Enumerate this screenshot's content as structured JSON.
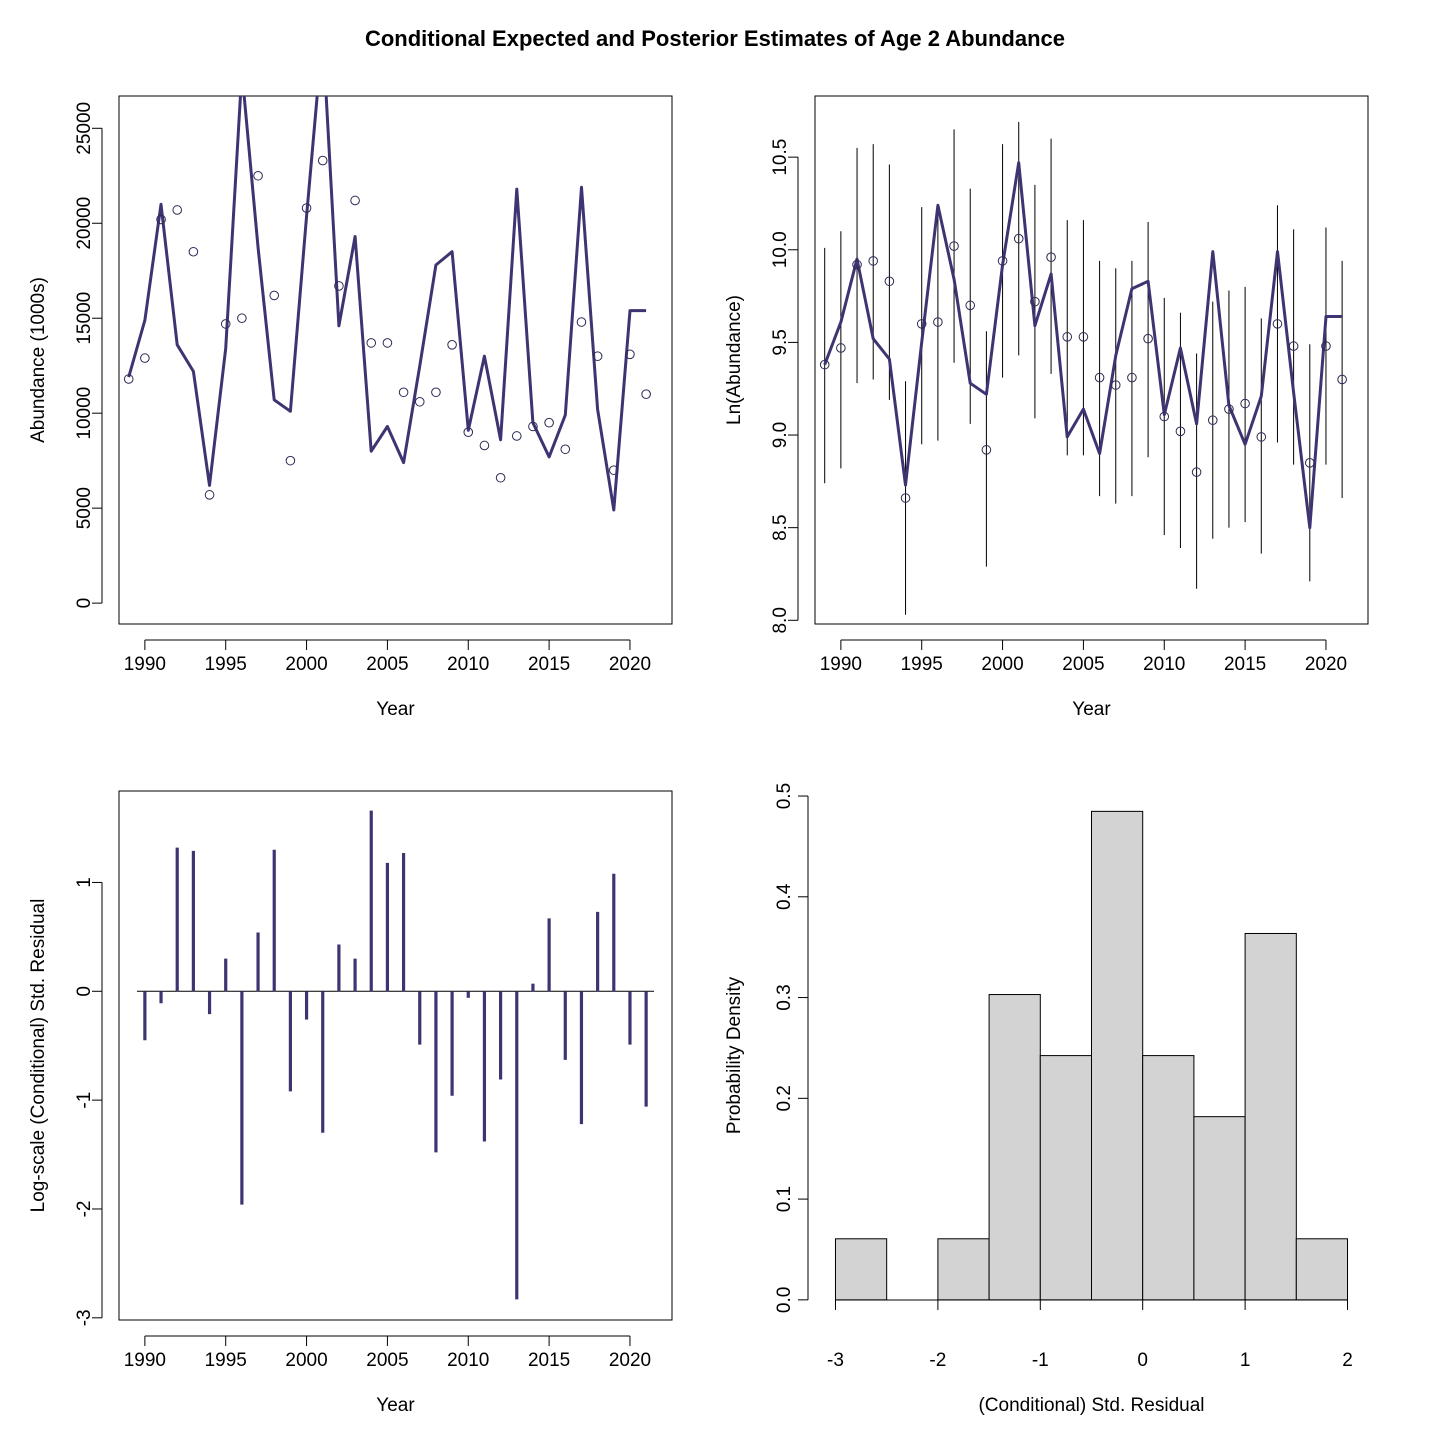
{
  "title": "Conditional Expected and Posterior Estimates of Age 2 Abundance",
  "colors": {
    "line": "#3f3472",
    "bar_fill": "#d3d3d3"
  },
  "chart_data": [
    {
      "type": "line",
      "panel": "top-left",
      "xlabel": "Year",
      "ylabel": "Abundance (1000s)",
      "xlim": [
        1988.4,
        2022.6
      ],
      "ylim": [
        -1100,
        26700
      ],
      "xticks": [
        1990,
        1995,
        2000,
        2005,
        2010,
        2015,
        2020
      ],
      "yticks": [
        0,
        5000,
        10000,
        15000,
        20000,
        25000
      ],
      "x": [
        1989,
        1990,
        1991,
        1992,
        1993,
        1994,
        1995,
        1996,
        1997,
        1998,
        1999,
        2000,
        2001,
        2002,
        2003,
        2004,
        2005,
        2006,
        2007,
        2008,
        2009,
        2010,
        2011,
        2012,
        2013,
        2014,
        2015,
        2016,
        2017,
        2018,
        2019,
        2020,
        2021
      ],
      "series": [
        {
          "style": "line",
          "values": [
            11900,
            14900,
            21000,
            13600,
            12200,
            6200,
            13400,
            28000,
            18700,
            10700,
            10100,
            20400,
            30000,
            14600,
            19300,
            8000,
            9300,
            7400,
            12500,
            17800,
            18500,
            9100,
            13000,
            8600,
            21800,
            9500,
            7700,
            9900,
            21900,
            10200,
            4900,
            15400,
            15400
          ]
        },
        {
          "style": "points",
          "values": [
            11800,
            12900,
            20200,
            20700,
            18500,
            5700,
            14700,
            15000,
            22500,
            16200,
            7500,
            20800,
            23300,
            16700,
            21200,
            13700,
            13700,
            11100,
            10600,
            11100,
            13600,
            9000,
            8300,
            6600,
            8800,
            9300,
            9500,
            8100,
            14800,
            13000,
            7000,
            13100,
            11000
          ]
        }
      ]
    },
    {
      "type": "line",
      "panel": "top-right",
      "xlabel": "Year",
      "ylabel": "Ln(Abundance)",
      "xlim": [
        1988.4,
        2022.6
      ],
      "ylim": [
        7.98,
        10.83
      ],
      "xticks": [
        1990,
        1995,
        2000,
        2005,
        2010,
        2015,
        2020
      ],
      "yticks": [
        8.0,
        8.5,
        9.0,
        9.5,
        10.0,
        10.5
      ],
      "ytick_labels": [
        "8.0",
        "8.5",
        "9.0",
        "9.5",
        "10.0",
        "10.5"
      ],
      "x": [
        1989,
        1990,
        1991,
        1992,
        1993,
        1994,
        1995,
        1996,
        1997,
        1998,
        1999,
        2000,
        2001,
        2002,
        2003,
        2004,
        2005,
        2006,
        2007,
        2008,
        2009,
        2010,
        2011,
        2012,
        2013,
        2014,
        2015,
        2016,
        2017,
        2018,
        2019,
        2020,
        2021
      ],
      "series": [
        {
          "style": "line",
          "values": [
            9.38,
            9.61,
            9.95,
            9.52,
            9.41,
            8.73,
            9.5,
            10.24,
            9.84,
            9.28,
            9.22,
            9.92,
            10.47,
            9.59,
            9.87,
            8.99,
            9.14,
            8.9,
            9.43,
            9.79,
            9.83,
            9.11,
            9.47,
            9.06,
            9.99,
            9.16,
            8.95,
            9.21,
            9.99,
            9.23,
            8.5,
            9.64,
            9.64
          ]
        },
        {
          "style": "points",
          "values": [
            9.38,
            9.47,
            9.92,
            9.94,
            9.83,
            8.66,
            9.6,
            9.61,
            10.02,
            9.7,
            8.92,
            9.94,
            10.06,
            9.72,
            9.96,
            9.53,
            9.53,
            9.31,
            9.27,
            9.31,
            9.52,
            9.1,
            9.02,
            8.8,
            9.08,
            9.14,
            9.17,
            8.99,
            9.6,
            9.48,
            8.85,
            9.48,
            9.3
          ]
        },
        {
          "style": "interval",
          "lower": [
            8.74,
            8.82,
            9.28,
            9.3,
            9.19,
            8.03,
            8.95,
            8.97,
            9.39,
            9.06,
            8.29,
            9.31,
            9.43,
            9.09,
            9.33,
            8.89,
            8.89,
            8.67,
            8.63,
            8.67,
            8.88,
            8.46,
            8.39,
            8.17,
            8.44,
            8.5,
            8.53,
            8.36,
            8.96,
            8.84,
            8.21,
            8.84,
            8.66
          ],
          "upper": [
            10.01,
            10.1,
            10.55,
            10.57,
            10.46,
            9.29,
            10.23,
            10.24,
            10.65,
            10.33,
            9.56,
            10.57,
            10.69,
            10.35,
            10.6,
            10.16,
            10.16,
            9.94,
            9.9,
            9.94,
            10.15,
            9.74,
            9.66,
            9.44,
            9.72,
            9.78,
            9.8,
            9.63,
            10.24,
            10.11,
            9.49,
            10.12,
            9.94
          ]
        }
      ]
    },
    {
      "type": "bar",
      "panel": "bottom-left",
      "xlabel": "Year",
      "ylabel": "Log-scale (Conditional) Std. Residual",
      "xlim": [
        1988.4,
        2022.6
      ],
      "ylim": [
        -3.02,
        1.84
      ],
      "xticks": [
        1990,
        1995,
        2000,
        2005,
        2010,
        2015,
        2020
      ],
      "yticks": [
        -3,
        -2,
        -1,
        0,
        1
      ],
      "x": [
        1989,
        1990,
        1991,
        1992,
        1993,
        1994,
        1995,
        1996,
        1997,
        1998,
        1999,
        2000,
        2001,
        2002,
        2003,
        2004,
        2005,
        2006,
        2007,
        2008,
        2009,
        2010,
        2011,
        2012,
        2013,
        2014,
        2015,
        2016,
        2017,
        2018,
        2019,
        2020,
        2021
      ],
      "values": [
        0.0,
        -0.45,
        -0.11,
        1.32,
        1.29,
        -0.21,
        0.3,
        -1.96,
        0.54,
        1.3,
        -0.92,
        -0.26,
        -1.3,
        0.43,
        0.3,
        1.66,
        1.18,
        1.27,
        -0.49,
        -1.48,
        -0.96,
        -0.06,
        -1.38,
        -0.81,
        -2.83,
        0.07,
        0.67,
        -0.63,
        -1.22,
        0.73,
        1.08,
        -0.49,
        -1.06
      ]
    },
    {
      "type": "bar",
      "panel": "bottom-right",
      "xlabel": "(Conditional) Std. Residual",
      "ylabel": "Probability Density",
      "xlim": [
        -3.2,
        2.2
      ],
      "ylim": [
        -0.02,
        0.505
      ],
      "xticks": [
        -3,
        -2,
        -1,
        0,
        1,
        2
      ],
      "yticks": [
        0.0,
        0.1,
        0.2,
        0.3,
        0.4,
        0.5
      ],
      "ytick_labels": [
        "0.0",
        "0.1",
        "0.2",
        "0.3",
        "0.4",
        "0.5"
      ],
      "bin_edges": [
        -3.0,
        -2.5,
        -2.0,
        -1.5,
        -1.0,
        -0.5,
        0.0,
        0.5,
        1.0,
        1.5,
        2.0
      ],
      "values": [
        0.0606,
        0.0,
        0.0606,
        0.303,
        0.2424,
        0.4848,
        0.2424,
        0.1818,
        0.3636,
        0.0606
      ]
    }
  ]
}
